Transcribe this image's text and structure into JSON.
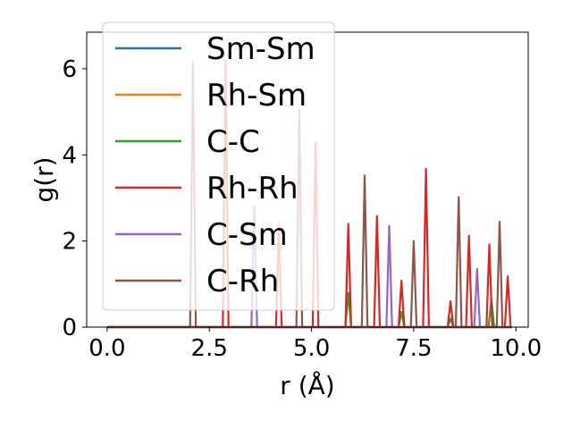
{
  "chart_data": {
    "type": "line",
    "xlabel": "r (Å)",
    "ylabel": "g(r)",
    "xlim": [
      -0.5,
      10.3
    ],
    "ylim": [
      0,
      6.85
    ],
    "xticks": [
      "0.0",
      "2.5",
      "5.0",
      "7.5",
      "10.0"
    ],
    "xtick_values": [
      0,
      2.5,
      5,
      7.5,
      10
    ],
    "yticks": [
      "0",
      "2",
      "4",
      "6"
    ],
    "ytick_values": [
      0,
      2,
      4,
      6
    ],
    "grid": false,
    "legend_position": "upper-left",
    "x_range": [
      0,
      9.9
    ],
    "series": [
      {
        "name": "Sm-Sm",
        "color": "#1f77b4",
        "peaks": []
      },
      {
        "name": "Rh-Sm",
        "color": "#ff7f0e",
        "peaks": []
      },
      {
        "name": "C-C",
        "color": "#2ca02c",
        "peaks": [
          [
            5.9,
            0.8
          ],
          [
            7.2,
            0.35
          ],
          [
            8.4,
            0.2
          ],
          [
            9.4,
            0.65
          ]
        ]
      },
      {
        "name": "Rh-Rh",
        "color": "#d62728",
        "peaks": [
          [
            2.9,
            6.2
          ],
          [
            4.2,
            2.35
          ],
          [
            5.1,
            4.3
          ],
          [
            5.9,
            2.4
          ],
          [
            6.6,
            2.58
          ],
          [
            7.2,
            1.08
          ],
          [
            7.8,
            3.68
          ],
          [
            8.4,
            0.6
          ],
          [
            8.85,
            2.12
          ],
          [
            9.35,
            1.92
          ],
          [
            9.8,
            1.18
          ]
        ]
      },
      {
        "name": "C-Sm",
        "color": "#9467bd",
        "peaks": [
          [
            3.6,
            2.82
          ],
          [
            6.9,
            2.35
          ],
          [
            9.05,
            1.35
          ]
        ]
      },
      {
        "name": "C-Rh",
        "color": "#8c564b",
        "peaks": [
          [
            2.1,
            6.15
          ],
          [
            4.7,
            5.05
          ],
          [
            6.3,
            3.52
          ],
          [
            7.5,
            2.0
          ],
          [
            8.6,
            3.02
          ],
          [
            9.6,
            2.45
          ]
        ]
      }
    ]
  }
}
